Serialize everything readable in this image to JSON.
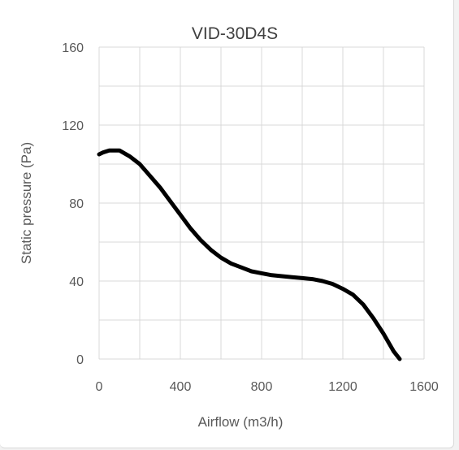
{
  "chart_data": {
    "type": "line",
    "title": "VID-30D4S",
    "xlabel": "Airflow (m3/h)",
    "ylabel": "Static pressure (Pa)",
    "xlim": [
      0,
      1600
    ],
    "ylim": [
      0,
      160
    ],
    "xticks": [
      0,
      400,
      800,
      1200,
      1600
    ],
    "yticks": [
      0,
      40,
      80,
      120,
      160
    ],
    "grid": true,
    "legend": "none",
    "line_color": "#000000",
    "grid_color": "#d9d9d9",
    "series": [
      {
        "x": [
          0,
          20,
          50,
          100,
          150,
          200,
          250,
          300,
          350,
          400,
          450,
          500,
          550,
          600,
          650,
          700,
          750,
          800,
          850,
          900,
          950,
          1000,
          1050,
          1100,
          1150,
          1200,
          1250,
          1300,
          1350,
          1400,
          1450,
          1480
        ],
        "y": [
          105,
          106,
          107,
          107,
          104,
          100,
          94,
          88,
          81,
          74,
          67,
          61,
          56,
          52,
          49,
          47,
          45,
          44,
          43,
          42.5,
          42,
          41.5,
          41,
          40,
          38.5,
          36,
          33,
          28,
          21,
          13,
          4,
          0
        ]
      }
    ]
  }
}
